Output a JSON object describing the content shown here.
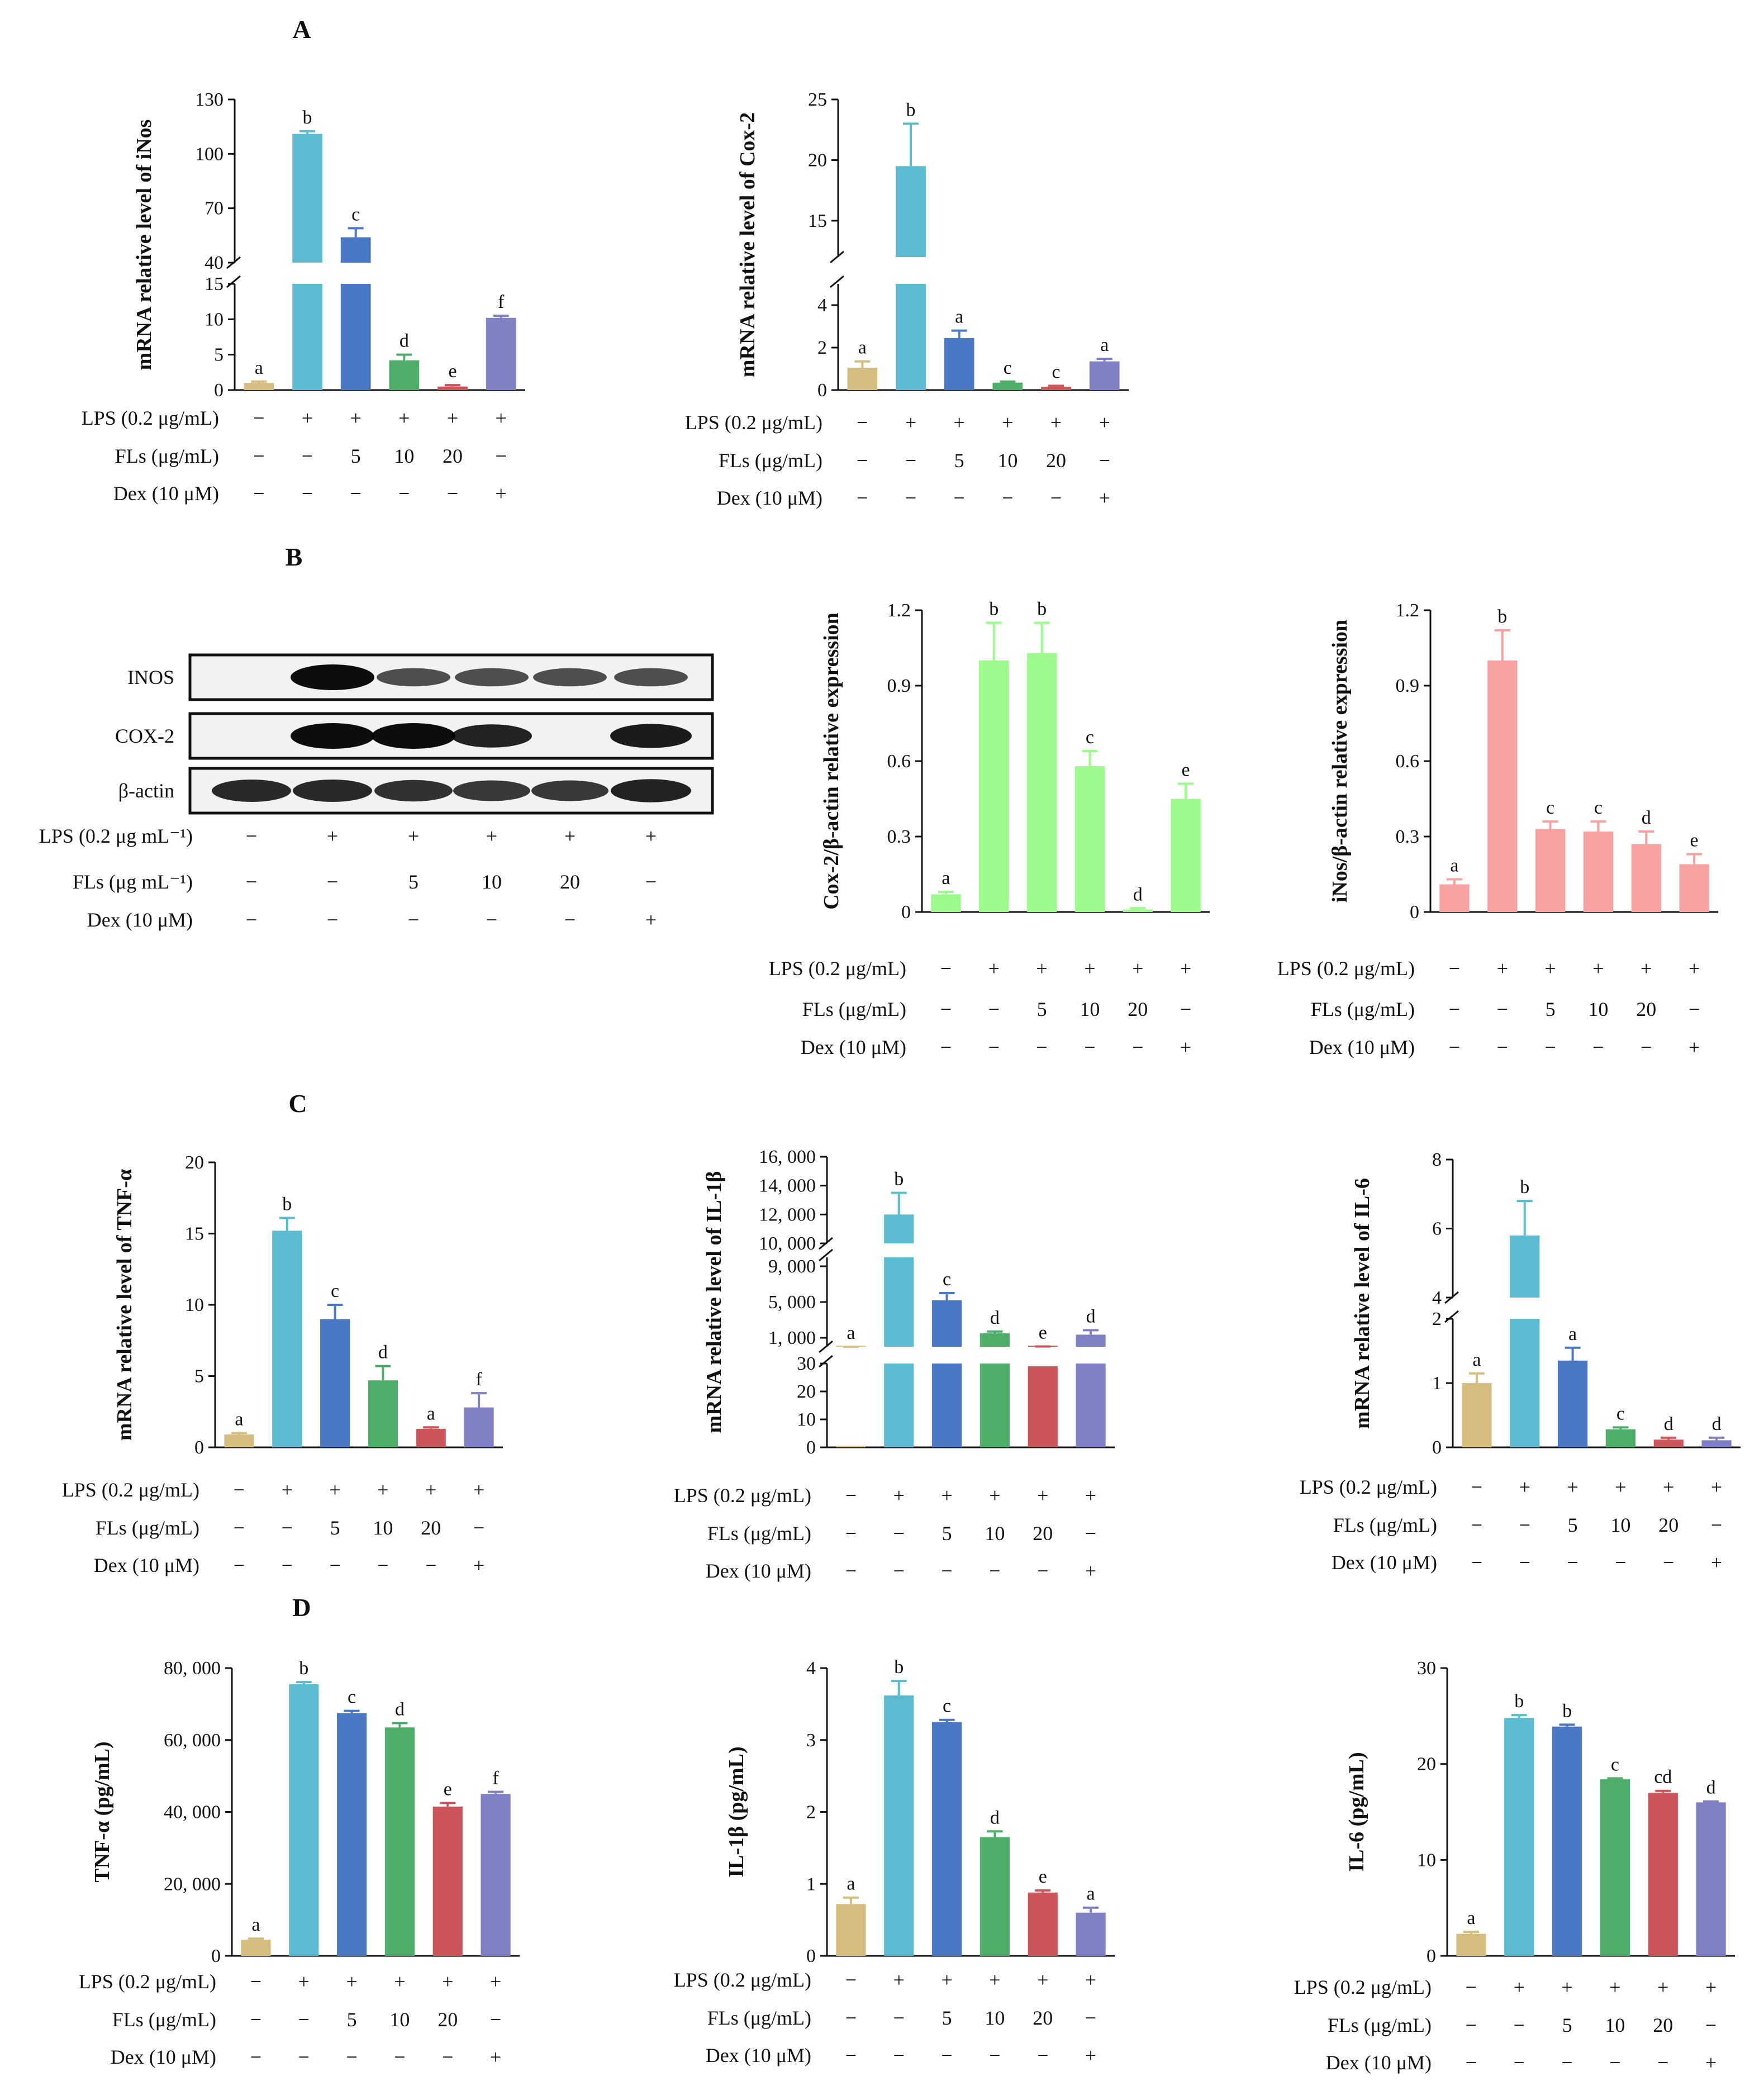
{
  "panels": [
    {
      "letter": "A"
    },
    {
      "letter": "B"
    },
    {
      "letter": "C"
    },
    {
      "letter": "D"
    }
  ],
  "treatment_labels": [
    "LPS (0.2 μg/mL)",
    "FLs (μg/mL)",
    "Dex (10 μM)"
  ],
  "treatment_labels_blot": [
    "LPS (0.2 μg mL⁻¹)",
    "FLs (μg mL⁻¹)",
    "Dex (10 μM)"
  ],
  "treatment_matrix": [
    [
      "−",
      "+",
      "+",
      "+",
      "+",
      "+"
    ],
    [
      "−",
      "−",
      "5",
      "10",
      "20",
      "−"
    ],
    [
      "−",
      "−",
      "−",
      "−",
      "−",
      "+"
    ]
  ],
  "western_blot": {
    "bands": [
      {
        "name": "INOS",
        "intensity": [
          0.0,
          1.0,
          0.55,
          0.55,
          0.55,
          0.55
        ]
      },
      {
        "name": "COX-2",
        "intensity": [
          0.0,
          1.0,
          1.0,
          0.85,
          0.0,
          0.9
        ]
      },
      {
        "name": "β-actin",
        "intensity": [
          0.8,
          0.8,
          0.75,
          0.7,
          0.7,
          0.85
        ]
      }
    ]
  },
  "colors": {
    "control": "#d4bd7f",
    "lps": "#5bbcd1",
    "fls5": "#4a78c4",
    "fls10": "#4fad6a",
    "fls20": "#cc555c",
    "dex": "#7f7fc4",
    "cox_green": "#9dfa8c",
    "inos_pink": "#f8a1a1"
  },
  "chart_data": [
    {
      "id": "A1",
      "type": "bar",
      "panel": "A",
      "ylabel": "mRNA relative level of iNos",
      "categories": [
        "1",
        "2",
        "3",
        "4",
        "5",
        "6"
      ],
      "values": [
        1,
        111,
        54,
        4.2,
        0.5,
        10.2
      ],
      "errors": [
        0.2,
        1.5,
        5,
        0.8,
        0.2,
        0.3
      ],
      "sig": [
        "a",
        "b",
        "c",
        "d",
        "e",
        "f"
      ],
      "axis_break": {
        "lower": [
          0,
          15
        ],
        "upper": [
          40,
          130
        ]
      },
      "lower_ticks": [
        "0",
        "5",
        "10",
        "15"
      ],
      "upper_ticks": [
        "40",
        "70",
        "100",
        "130"
      ]
    },
    {
      "id": "A2",
      "type": "bar",
      "panel": "A",
      "ylabel": "mRNA relative level of Cox-2",
      "categories": [
        "1",
        "2",
        "3",
        "4",
        "5",
        "6"
      ],
      "values": [
        1.05,
        19.5,
        2.45,
        0.35,
        0.15,
        1.35
      ],
      "errors": [
        0.3,
        3.5,
        0.35,
        0.05,
        0.05,
        0.12
      ],
      "sig": [
        "a",
        "b",
        "a",
        "c",
        "c",
        "a"
      ],
      "axis_break": {
        "lower": [
          0,
          5
        ],
        "upper": [
          12,
          25
        ]
      },
      "lower_ticks": [
        "0",
        "2",
        "4"
      ],
      "upper_ticks": [
        "15",
        "20",
        "25"
      ]
    },
    {
      "id": "B1",
      "type": "bar",
      "panel": "B",
      "ylabel": "Cox-2/β-actin relative expression",
      "categories": [
        "1",
        "2",
        "3",
        "4",
        "5",
        "6"
      ],
      "values": [
        0.07,
        1.0,
        1.03,
        0.58,
        0.01,
        0.45
      ],
      "errors": [
        0.01,
        0.15,
        0.12,
        0.06,
        0.005,
        0.06
      ],
      "sig": [
        "a",
        "b",
        "b",
        "c",
        "d",
        "e"
      ],
      "ylim": [
        0,
        1.2
      ],
      "ticks": [
        "0",
        "0.3",
        "0.6",
        "0.9",
        "1.2"
      ]
    },
    {
      "id": "B2",
      "type": "bar",
      "panel": "B",
      "ylabel": "iNos/β-actin relative expression",
      "categories": [
        "1",
        "2",
        "3",
        "4",
        "5",
        "6"
      ],
      "values": [
        0.11,
        1.0,
        0.33,
        0.32,
        0.27,
        0.19
      ],
      "errors": [
        0.02,
        0.12,
        0.03,
        0.04,
        0.05,
        0.04
      ],
      "sig": [
        "a",
        "b",
        "c",
        "c",
        "d",
        "e"
      ],
      "ylim": [
        0,
        1.2
      ],
      "ticks": [
        "0",
        "0.3",
        "0.6",
        "0.9",
        "1.2"
      ]
    },
    {
      "id": "C1",
      "type": "bar",
      "panel": "C",
      "ylabel": "mRNA relative level of TNF-α",
      "categories": [
        "1",
        "2",
        "3",
        "4",
        "5",
        "6"
      ],
      "values": [
        0.9,
        15.2,
        9.0,
        4.7,
        1.3,
        2.8
      ],
      "errors": [
        0.1,
        0.9,
        1.0,
        1.0,
        0.1,
        1.0
      ],
      "sig": [
        "a",
        "b",
        "c",
        "d",
        "a",
        "f"
      ],
      "ylim": [
        0,
        20
      ],
      "ticks": [
        "0",
        "5",
        "10",
        "15",
        "20"
      ]
    },
    {
      "id": "C2",
      "type": "bar",
      "panel": "C",
      "ylabel": "mRNA relative level of IL-1β",
      "categories": [
        "1",
        "2",
        "3",
        "4",
        "5",
        "6"
      ],
      "values": [
        0.5,
        12000,
        5200,
        1500,
        29,
        1350
      ],
      "errors": [
        0.1,
        1500,
        800,
        200,
        0.5,
        500
      ],
      "sig": [
        "a",
        "b",
        "c",
        "d",
        "e",
        "d"
      ],
      "axis_segments": [
        [
          0,
          30
        ],
        [
          0,
          10000
        ],
        [
          10000,
          16000
        ]
      ],
      "seg_ticks": [
        [
          "0",
          "10",
          "20",
          "30"
        ],
        [
          "1, 000",
          "5, 000",
          "9, 000"
        ],
        [
          "10, 000",
          "12, 000",
          "14, 000",
          "16, 000"
        ]
      ]
    },
    {
      "id": "C3",
      "type": "bar",
      "panel": "C",
      "ylabel": "mRNA relative level of IL-6",
      "categories": [
        "1",
        "2",
        "3",
        "4",
        "5",
        "6"
      ],
      "values": [
        1.0,
        5.8,
        1.35,
        0.28,
        0.12,
        0.11
      ],
      "errors": [
        0.15,
        1.0,
        0.2,
        0.03,
        0.03,
        0.04
      ],
      "sig": [
        "a",
        "b",
        "a",
        "c",
        "d",
        "d"
      ],
      "axis_break": {
        "lower": [
          0,
          2
        ],
        "upper": [
          4,
          8
        ]
      },
      "lower_ticks": [
        "0",
        "1",
        "2"
      ],
      "upper_ticks": [
        "4",
        "6",
        "8"
      ]
    },
    {
      "id": "D1",
      "type": "bar",
      "panel": "D",
      "ylabel": "TNF-α (pg/mL)",
      "categories": [
        "1",
        "2",
        "3",
        "4",
        "5",
        "6"
      ],
      "values": [
        4500,
        75500,
        67500,
        63500,
        41500,
        45000
      ],
      "errors": [
        300,
        600,
        600,
        1200,
        1000,
        600
      ],
      "sig": [
        "a",
        "b",
        "c",
        "d",
        "e",
        "f"
      ],
      "ylim": [
        0,
        80000
      ],
      "ticks": [
        "0",
        "20, 000",
        "40, 000",
        "60, 000",
        "80, 000"
      ]
    },
    {
      "id": "D2",
      "type": "bar",
      "panel": "D",
      "ylabel": "IL-1β (pg/mL)",
      "categories": [
        "1",
        "2",
        "3",
        "4",
        "5",
        "6"
      ],
      "values": [
        0.72,
        3.62,
        3.25,
        1.65,
        0.88,
        0.6
      ],
      "errors": [
        0.09,
        0.2,
        0.03,
        0.08,
        0.03,
        0.07
      ],
      "sig": [
        "a",
        "b",
        "c",
        "d",
        "e",
        "a"
      ],
      "ylim": [
        0,
        4
      ],
      "ticks": [
        "0",
        "1",
        "2",
        "3",
        "4"
      ]
    },
    {
      "id": "D3",
      "type": "bar",
      "panel": "D",
      "ylabel": "IL-6 (pg/mL)",
      "categories": [
        "1",
        "2",
        "3",
        "4",
        "5",
        "6"
      ],
      "values": [
        2.3,
        24.8,
        23.9,
        18.4,
        17.0,
        16.0
      ],
      "errors": [
        0.2,
        0.3,
        0.2,
        0.1,
        0.2,
        0.1
      ],
      "sig": [
        "a",
        "b",
        "b",
        "c",
        "cd",
        "d"
      ],
      "ylim": [
        0,
        30
      ],
      "ticks": [
        "0",
        "10",
        "20",
        "30"
      ]
    }
  ]
}
